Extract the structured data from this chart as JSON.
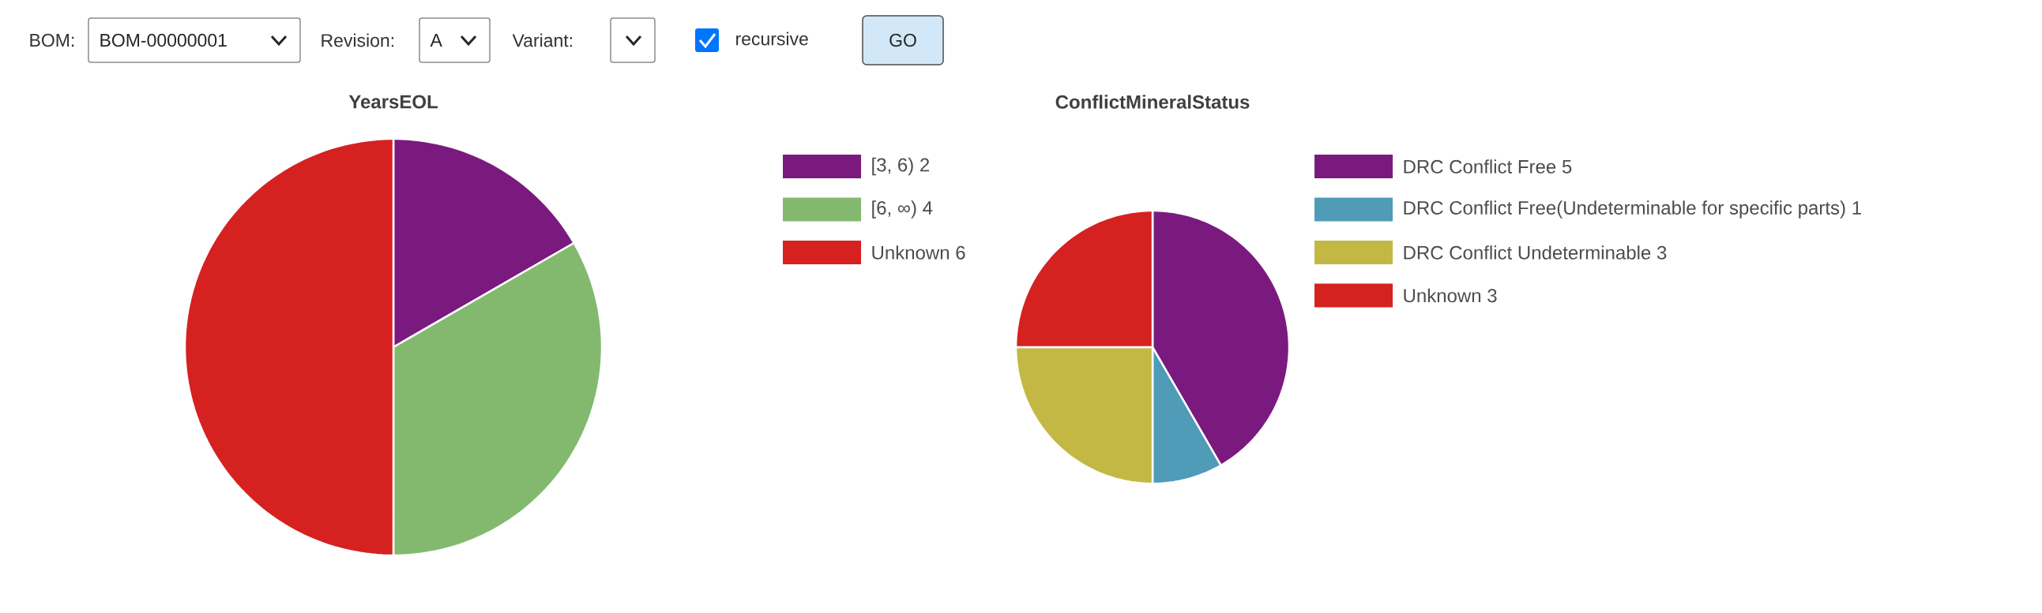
{
  "chart_data": [
    {
      "type": "other",
      "annotations": [
        "BOM:",
        "BOM-00000001",
        "Revision:",
        "A",
        "Variant:",
        "recursive",
        "GO"
      ]
    },
    {
      "type": "pie",
      "title": "YearsEOL",
      "categories": [
        "[3, 6)",
        "[6, ∞)",
        "Unknown"
      ],
      "values": [
        2,
        4,
        6
      ],
      "colors": [
        "#7b1a7e",
        "#83b96e",
        "#d62121"
      ],
      "legend": "right",
      "data_labels": true
    },
    {
      "type": "pie",
      "title": "ConflictMineralStatus",
      "categories": [
        "DRC Conflict Free",
        "DRC Conflict Free(Undeterminable for specific parts)",
        "DRC Conflict Undeterminable",
        "Unknown"
      ],
      "values": [
        5,
        1,
        3,
        3
      ],
      "colors": [
        "#7b1a7e",
        "#4f9bb8",
        "#c3b843",
        "#d62121"
      ],
      "legend": "right",
      "data_labels": true
    }
  ]
}
